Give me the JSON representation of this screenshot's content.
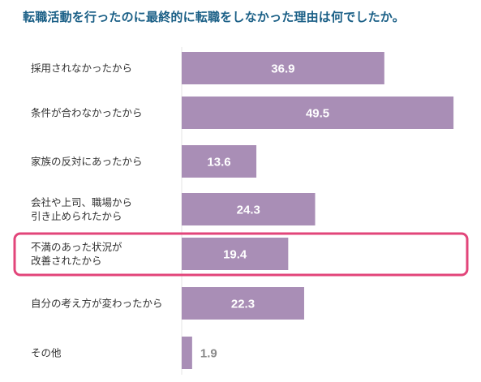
{
  "chart_data": {
    "type": "bar",
    "orientation": "horizontal",
    "title": "転職活動を行ったのに最終的に転職をしなかった理由は何でしたか。",
    "xlabel": "",
    "ylabel": "",
    "categories": [
      [
        "採用されなかったから"
      ],
      [
        "条件が合わなかったから"
      ],
      [
        "家族の反対にあったから"
      ],
      [
        "会社や上司、職場から",
        "引き止められたから"
      ],
      [
        "不満のあった状況が",
        "改善されたから"
      ],
      [
        "自分の考え方が変わったから"
      ],
      [
        "その他"
      ]
    ],
    "values": [
      36.9,
      49.5,
      13.6,
      24.3,
      19.4,
      22.3,
      1.9
    ],
    "value_labels": [
      "36.9",
      "49.5",
      "13.6",
      "24.3",
      "19.4",
      "22.3",
      "1.9"
    ],
    "xlim": [
      0,
      50
    ],
    "grid": false,
    "highlighted_index": 4,
    "colors": {
      "bar": "#a98eb6",
      "value_inside": "#ffffff",
      "value_outside": "#8a8a8a",
      "highlight_border": "#e2457a",
      "title": "#1a5f86",
      "label": "#333333",
      "axis_line": "#e6e6e6"
    }
  }
}
